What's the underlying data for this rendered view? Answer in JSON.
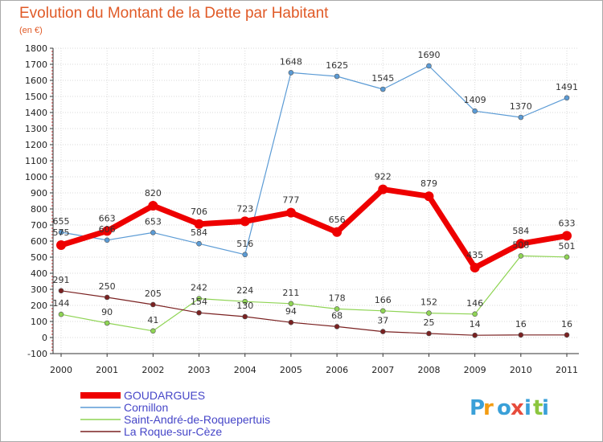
{
  "chart_data": {
    "type": "line",
    "title": "Evolution du Montant de la Dette par Habitant",
    "subtitle": "(en €)",
    "ylim": [
      -100,
      1800
    ],
    "yticks": [
      -100,
      0,
      100,
      200,
      300,
      400,
      500,
      600,
      700,
      800,
      900,
      1000,
      1100,
      1200,
      1300,
      1400,
      1500,
      1600,
      1700,
      1800
    ],
    "x": [
      "2000",
      "2001",
      "2002",
      "2003",
      "2004",
      "2005",
      "2006",
      "2007",
      "2008",
      "2009",
      "2010",
      "2011"
    ],
    "grid": true,
    "legend_position": "bottom-left",
    "series": [
      {
        "name": "Cornillon",
        "color": "#5b9bd5",
        "values": [
          655,
          606,
          653,
          584,
          516,
          1648,
          1625,
          1545,
          1690,
          1409,
          1370,
          1491
        ],
        "labels": [
          "655",
          "606",
          "653",
          "584",
          "516",
          "1648",
          "1625",
          "1545",
          "1690",
          "1409",
          "1370",
          "1491"
        ]
      },
      {
        "name": "Saint-André-de-Roquepertuis",
        "color": "#8fd454",
        "values": [
          144,
          90,
          41,
          242,
          224,
          211,
          178,
          166,
          152,
          146,
          508,
          501
        ],
        "labels": [
          "144",
          "90",
          "41",
          "242",
          "224",
          "211",
          "178",
          "166",
          "152",
          "146",
          "508",
          "501"
        ]
      },
      {
        "name": "La Roque-sur-Cèze",
        "color": "#7a2121",
        "values": [
          291,
          250,
          205,
          154,
          130,
          94,
          68,
          37,
          25,
          14,
          16,
          16
        ],
        "labels": [
          "291",
          "250",
          "205",
          "154",
          "130",
          "94",
          "68",
          "37",
          "25",
          "14",
          "16",
          "16"
        ]
      },
      {
        "name": "GOUDARGUES",
        "color": "#ee0000",
        "values": [
          575,
          663,
          820,
          706,
          723,
          777,
          656,
          922,
          879,
          435,
          584,
          633
        ],
        "labels": [
          "575",
          "663",
          "820",
          "706",
          "723",
          "777",
          "656",
          "922",
          "879",
          "435",
          "584",
          "633"
        ]
      }
    ],
    "legend": [
      "GOUDARGUES",
      "Cornillon",
      "Saint-André-de-Roquepertuis",
      "La Roque-sur-Cèze"
    ]
  },
  "logo": {
    "text": "Proxiti",
    "letters": [
      "P",
      "r",
      "o",
      "x",
      "i",
      "t",
      "i"
    ],
    "colors": [
      "#3aa0d8",
      "#f39c12",
      "#3aa0d8",
      "#e74c3c",
      "#3aa0d8",
      "#8cc63f",
      "#3aa0d8"
    ]
  }
}
